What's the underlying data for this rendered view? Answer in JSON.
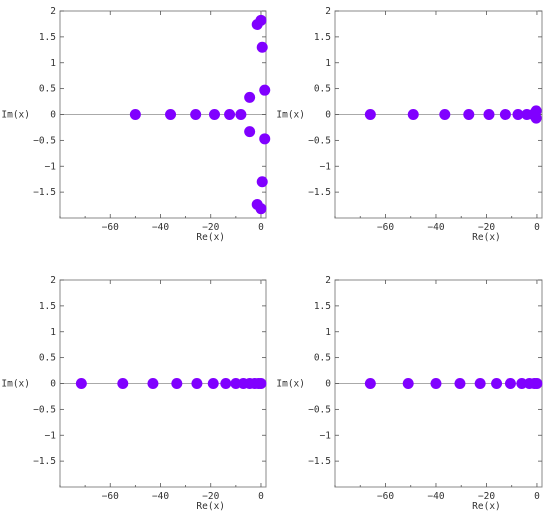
{
  "style": {
    "point_color": "#8000ff"
  },
  "chart_data": [
    {
      "type": "scatter",
      "xlabel": "Re(x)",
      "ylabel": "Im(x)",
      "xlim": [
        -80,
        2
      ],
      "ylim": [
        -2,
        2
      ],
      "xticks": [
        -60,
        -40,
        -20,
        0
      ],
      "xtick_labels": [
        "−60",
        "−40",
        "−20",
        "0"
      ],
      "yticks": [
        2,
        1.5,
        1,
        0.5,
        0,
        -0.5,
        -1,
        -1.5
      ],
      "ytick_labels": [
        "2",
        "1.5",
        "1",
        "0.5",
        "0",
        "−0.5",
        "−1",
        "−1.5"
      ],
      "points": [
        {
          "x": -50,
          "y": 0
        },
        {
          "x": -36,
          "y": 0
        },
        {
          "x": -26,
          "y": 0
        },
        {
          "x": -18.5,
          "y": 0
        },
        {
          "x": -12.5,
          "y": 0
        },
        {
          "x": -8,
          "y": 0
        },
        {
          "x": -4.5,
          "y": 0.33
        },
        {
          "x": -4.5,
          "y": -0.33
        },
        {
          "x": 1.5,
          "y": 0.47
        },
        {
          "x": 1.5,
          "y": -0.47
        },
        {
          "x": 0.5,
          "y": 1.3
        },
        {
          "x": 0.5,
          "y": -1.3
        },
        {
          "x": -1.5,
          "y": 1.74
        },
        {
          "x": -1.5,
          "y": -1.74
        },
        {
          "x": 0,
          "y": 1.82
        },
        {
          "x": 0,
          "y": -1.82
        }
      ]
    },
    {
      "type": "scatter",
      "xlabel": "Re(x)",
      "ylabel": "Im(x)",
      "xlim": [
        -80,
        2
      ],
      "ylim": [
        -2,
        2
      ],
      "xticks": [
        -60,
        -40,
        -20,
        0
      ],
      "xtick_labels": [
        "−60",
        "−40",
        "−20",
        "0"
      ],
      "yticks": [
        2,
        1.5,
        1,
        0.5,
        0,
        -0.5,
        -1,
        -1.5
      ],
      "ytick_labels": [
        "2",
        "1.5",
        "1",
        "0.5",
        "0",
        "−0.5",
        "−1",
        "−1.5"
      ],
      "points": [
        {
          "x": -66,
          "y": 0
        },
        {
          "x": -49,
          "y": 0
        },
        {
          "x": -36.5,
          "y": 0
        },
        {
          "x": -27,
          "y": 0
        },
        {
          "x": -19,
          "y": 0
        },
        {
          "x": -12.5,
          "y": 0
        },
        {
          "x": -7.5,
          "y": 0
        },
        {
          "x": -4,
          "y": 0
        },
        {
          "x": -1.5,
          "y": 0
        },
        {
          "x": -0.3,
          "y": 0.07
        },
        {
          "x": -0.3,
          "y": -0.07
        }
      ]
    },
    {
      "type": "scatter",
      "xlabel": "Re(x)",
      "ylabel": "Im(x)",
      "xlim": [
        -80,
        2
      ],
      "ylim": [
        -2,
        2
      ],
      "xticks": [
        -60,
        -40,
        -20,
        0
      ],
      "xtick_labels": [
        "−60",
        "−40",
        "−20",
        "0"
      ],
      "yticks": [
        2,
        1.5,
        1,
        0.5,
        0,
        -0.5,
        -1,
        -1.5
      ],
      "ytick_labels": [
        "2",
        "1.5",
        "1",
        "0.5",
        "0",
        "−0.5",
        "−1",
        "−1.5"
      ],
      "points": [
        {
          "x": -71.5,
          "y": 0
        },
        {
          "x": -55,
          "y": 0
        },
        {
          "x": -43,
          "y": 0
        },
        {
          "x": -33.5,
          "y": 0
        },
        {
          "x": -25.5,
          "y": 0
        },
        {
          "x": -19,
          "y": 0
        },
        {
          "x": -14,
          "y": 0
        },
        {
          "x": -10,
          "y": 0
        },
        {
          "x": -7,
          "y": 0
        },
        {
          "x": -4.5,
          "y": 0
        },
        {
          "x": -2.5,
          "y": 0
        },
        {
          "x": -1,
          "y": 0
        },
        {
          "x": 0,
          "y": 0
        }
      ]
    },
    {
      "type": "scatter",
      "xlabel": "Re(x)",
      "ylabel": "Im(x)",
      "xlim": [
        -80,
        2
      ],
      "ylim": [
        -2,
        2
      ],
      "xticks": [
        -60,
        -40,
        -20,
        0
      ],
      "xtick_labels": [
        "−60",
        "−40",
        "−20",
        "0"
      ],
      "yticks": [
        2,
        1.5,
        1,
        0.5,
        0,
        -0.5,
        -1,
        -1.5
      ],
      "ytick_labels": [
        "2",
        "1.5",
        "1",
        "0.5",
        "0",
        "−0.5",
        "−1",
        "−1.5"
      ],
      "points": [
        {
          "x": -66,
          "y": 0
        },
        {
          "x": -51,
          "y": 0
        },
        {
          "x": -40,
          "y": 0
        },
        {
          "x": -30.5,
          "y": 0
        },
        {
          "x": -22.5,
          "y": 0
        },
        {
          "x": -16,
          "y": 0
        },
        {
          "x": -10.5,
          "y": 0
        },
        {
          "x": -6,
          "y": 0
        },
        {
          "x": -3,
          "y": 0
        },
        {
          "x": -1,
          "y": 0
        },
        {
          "x": 0,
          "y": 0
        }
      ]
    }
  ]
}
